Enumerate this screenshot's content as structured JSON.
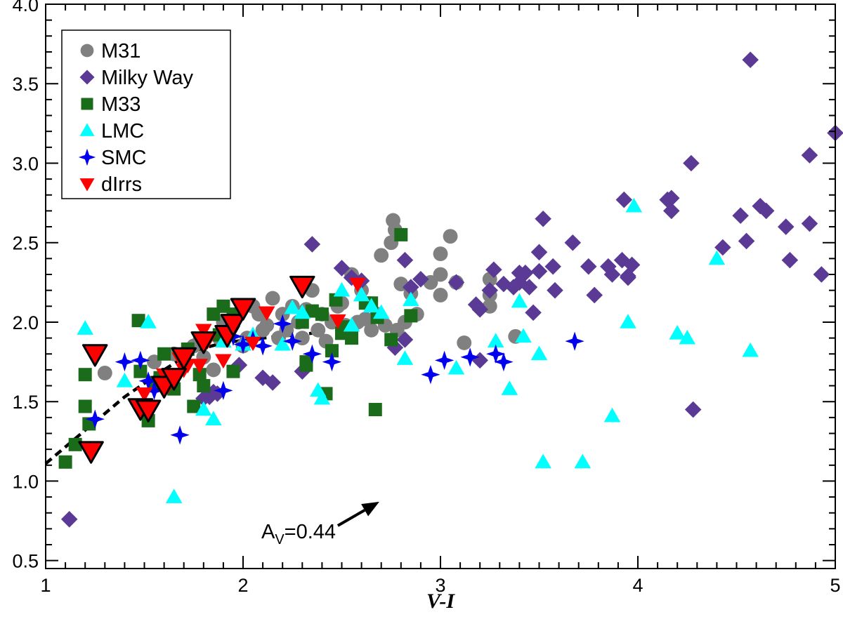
{
  "chart_data": {
    "type": "scatter",
    "title": "",
    "xlabel": "V-I",
    "ylabel": "",
    "xlim": [
      1,
      5
    ],
    "ylim": [
      0.45,
      4.0
    ],
    "xticks": [
      "1",
      "2",
      "3",
      "4",
      "5"
    ],
    "xtick_values": [
      1,
      2,
      3,
      4,
      5
    ],
    "yticks": [
      "0.5",
      "1.0",
      "1.5",
      "2.0",
      "2.5",
      "3.0",
      "3.5",
      "4.0"
    ],
    "ytick_values": [
      0.5,
      1.0,
      1.5,
      2.0,
      2.5,
      3.0,
      3.5,
      4.0
    ],
    "grid": false,
    "legend_position": "top-left",
    "series": [
      {
        "name": "M31",
        "marker": "circle",
        "color": "#808080",
        "points": [
          [
            1.3,
            1.68
          ],
          [
            1.55,
            1.75
          ],
          [
            1.65,
            1.8
          ],
          [
            1.7,
            1.78
          ],
          [
            1.75,
            1.85
          ],
          [
            1.78,
            1.88
          ],
          [
            1.8,
            1.78
          ],
          [
            1.85,
            1.7
          ],
          [
            1.88,
            1.9
          ],
          [
            1.9,
            2.0
          ],
          [
            1.92,
            1.95
          ],
          [
            1.95,
            2.0
          ],
          [
            1.97,
            2.05
          ],
          [
            2.0,
            1.85
          ],
          [
            2.02,
            1.9
          ],
          [
            2.05,
            2.1
          ],
          [
            2.08,
            2.05
          ],
          [
            2.1,
            1.95
          ],
          [
            2.12,
            1.98
          ],
          [
            2.15,
            2.15
          ],
          [
            2.18,
            1.9
          ],
          [
            2.2,
            2.05
          ],
          [
            2.22,
            1.95
          ],
          [
            2.25,
            2.1
          ],
          [
            2.28,
            2.0
          ],
          [
            2.3,
            1.9
          ],
          [
            2.32,
            2.08
          ],
          [
            2.35,
            2.2
          ],
          [
            2.38,
            1.95
          ],
          [
            2.4,
            2.05
          ],
          [
            2.42,
            1.88
          ],
          [
            2.45,
            2.0
          ],
          [
            2.48,
            2.1
          ],
          [
            2.5,
            2.12
          ],
          [
            2.52,
            1.98
          ],
          [
            2.55,
            2.3
          ],
          [
            2.58,
            2.0
          ],
          [
            2.6,
            2.2
          ],
          [
            2.62,
            2.02
          ],
          [
            2.65,
            1.95
          ],
          [
            2.68,
            2.05
          ],
          [
            2.7,
            2.42
          ],
          [
            2.72,
            1.98
          ],
          [
            2.75,
            2.5
          ],
          [
            2.76,
            2.64
          ],
          [
            2.77,
            2.58
          ],
          [
            2.78,
            1.95
          ],
          [
            2.8,
            2.24
          ],
          [
            2.82,
            2.0
          ],
          [
            2.85,
            2.18
          ],
          [
            2.88,
            2.05
          ],
          [
            2.95,
            2.25
          ],
          [
            3.0,
            2.43
          ],
          [
            3.0,
            2.3
          ],
          [
            3.0,
            2.17
          ],
          [
            3.05,
            2.54
          ],
          [
            3.08,
            2.25
          ],
          [
            3.12,
            1.87
          ],
          [
            3.25,
            2.27
          ],
          [
            3.25,
            2.17
          ],
          [
            3.25,
            2.1
          ],
          [
            3.38,
            1.91
          ]
        ]
      },
      {
        "name": "Milky Way",
        "marker": "diamond",
        "color": "#5b3a96",
        "points": [
          [
            1.12,
            0.76
          ],
          [
            1.8,
            1.52
          ],
          [
            1.83,
            1.53
          ],
          [
            1.85,
            1.56
          ],
          [
            1.87,
            1.55
          ],
          [
            1.98,
            1.73
          ],
          [
            2.1,
            1.65
          ],
          [
            2.15,
            1.62
          ],
          [
            2.3,
            1.69
          ],
          [
            2.35,
            2.49
          ],
          [
            2.5,
            2.34
          ],
          [
            2.55,
            2.28
          ],
          [
            2.6,
            2.26
          ],
          [
            2.77,
            1.84
          ],
          [
            2.82,
            2.39
          ],
          [
            2.82,
            1.89
          ],
          [
            2.85,
            2.22
          ],
          [
            2.9,
            2.27
          ],
          [
            3.08,
            2.25
          ],
          [
            3.18,
            2.11
          ],
          [
            3.2,
            2.08
          ],
          [
            3.2,
            1.76
          ],
          [
            3.25,
            2.2
          ],
          [
            3.27,
            2.33
          ],
          [
            3.32,
            2.24
          ],
          [
            3.37,
            2.22
          ],
          [
            3.4,
            2.25
          ],
          [
            3.4,
            2.31
          ],
          [
            3.43,
            2.31
          ],
          [
            3.45,
            2.22
          ],
          [
            3.47,
            2.06
          ],
          [
            3.5,
            2.32
          ],
          [
            3.5,
            2.44
          ],
          [
            3.52,
            2.65
          ],
          [
            3.57,
            2.35
          ],
          [
            3.58,
            2.2
          ],
          [
            3.67,
            2.5
          ],
          [
            3.75,
            2.35
          ],
          [
            3.78,
            2.17
          ],
          [
            3.85,
            2.35
          ],
          [
            3.87,
            2.3
          ],
          [
            3.92,
            2.39
          ],
          [
            3.93,
            2.77
          ],
          [
            3.95,
            2.28
          ],
          [
            3.95,
            2.29
          ],
          [
            3.97,
            2.36
          ],
          [
            4.15,
            2.77
          ],
          [
            4.17,
            2.78
          ],
          [
            4.17,
            2.7
          ],
          [
            4.27,
            3.0
          ],
          [
            4.28,
            1.45
          ],
          [
            4.43,
            2.47
          ],
          [
            4.52,
            2.67
          ],
          [
            4.55,
            2.51
          ],
          [
            4.57,
            3.65
          ],
          [
            4.62,
            2.73
          ],
          [
            4.65,
            2.7
          ],
          [
            4.75,
            2.6
          ],
          [
            4.77,
            2.39
          ],
          [
            4.87,
            3.05
          ],
          [
            4.87,
            2.62
          ],
          [
            4.93,
            2.3
          ],
          [
            5.0,
            3.19
          ]
        ]
      },
      {
        "name": "M33",
        "marker": "square",
        "color": "#1a6b1a",
        "points": [
          [
            1.1,
            1.12
          ],
          [
            1.15,
            1.23
          ],
          [
            1.2,
            1.67
          ],
          [
            1.2,
            1.47
          ],
          [
            1.22,
            1.36
          ],
          [
            1.47,
            2.01
          ],
          [
            1.48,
            1.69
          ],
          [
            1.5,
            1.47
          ],
          [
            1.52,
            1.38
          ],
          [
            1.55,
            1.62
          ],
          [
            1.58,
            1.65
          ],
          [
            1.6,
            1.8
          ],
          [
            1.65,
            1.58
          ],
          [
            1.72,
            1.83
          ],
          [
            1.75,
            1.47
          ],
          [
            1.78,
            1.67
          ],
          [
            1.8,
            1.6
          ],
          [
            1.85,
            2.05
          ],
          [
            1.88,
            1.92
          ],
          [
            1.9,
            2.1
          ],
          [
            1.92,
            1.93
          ],
          [
            1.95,
            2.05
          ],
          [
            1.95,
            1.69
          ],
          [
            2.3,
            2.0
          ],
          [
            2.32,
            1.75
          ],
          [
            2.32,
            1.73
          ],
          [
            2.35,
            2.07
          ],
          [
            2.4,
            2.05
          ],
          [
            2.42,
            1.55
          ],
          [
            2.45,
            1.82
          ],
          [
            2.47,
            2.14
          ],
          [
            2.5,
            1.93
          ],
          [
            2.52,
            1.97
          ],
          [
            2.55,
            1.9
          ],
          [
            2.62,
            2.12
          ],
          [
            2.65,
            2.12
          ],
          [
            2.68,
            2.03
          ],
          [
            2.67,
            1.45
          ],
          [
            2.75,
            1.89
          ],
          [
            2.8,
            2.55
          ],
          [
            2.85,
            2.04
          ]
        ]
      },
      {
        "name": "LMC",
        "marker": "triangle-up",
        "color": "#00ffff",
        "points": [
          [
            1.2,
            1.96
          ],
          [
            1.4,
            1.63
          ],
          [
            1.52,
            2.0
          ],
          [
            1.65,
            0.9
          ],
          [
            1.8,
            1.45
          ],
          [
            1.85,
            1.39
          ],
          [
            1.9,
            1.88
          ],
          [
            2.0,
            1.86
          ],
          [
            2.05,
            1.92
          ],
          [
            2.2,
            1.86
          ],
          [
            2.25,
            2.09
          ],
          [
            2.3,
            2.06
          ],
          [
            2.38,
            1.57
          ],
          [
            2.4,
            1.52
          ],
          [
            2.5,
            2.2
          ],
          [
            2.55,
            1.98
          ],
          [
            2.6,
            2.17
          ],
          [
            2.65,
            2.1
          ],
          [
            2.7,
            2.06
          ],
          [
            2.82,
            1.77
          ],
          [
            2.85,
            2.14
          ],
          [
            3.08,
            1.71
          ],
          [
            3.28,
            1.88
          ],
          [
            3.35,
            1.58
          ],
          [
            3.4,
            2.13
          ],
          [
            3.42,
            1.91
          ],
          [
            3.5,
            1.8
          ],
          [
            3.52,
            1.12
          ],
          [
            3.72,
            1.12
          ],
          [
            3.87,
            1.41
          ],
          [
            3.95,
            2.0
          ],
          [
            3.98,
            2.73
          ],
          [
            4.2,
            1.93
          ],
          [
            4.25,
            1.9
          ],
          [
            4.4,
            2.4
          ],
          [
            4.57,
            1.82
          ]
        ]
      },
      {
        "name": "SMC",
        "marker": "star4",
        "color": "#0000ee",
        "points": [
          [
            1.25,
            1.39
          ],
          [
            1.4,
            1.75
          ],
          [
            1.48,
            1.76
          ],
          [
            1.52,
            1.63
          ],
          [
            1.55,
            1.57
          ],
          [
            1.68,
            1.29
          ],
          [
            1.9,
            1.57
          ],
          [
            1.92,
            1.96
          ],
          [
            1.95,
            1.91
          ],
          [
            2.0,
            1.86
          ],
          [
            2.05,
            1.89
          ],
          [
            2.1,
            1.85
          ],
          [
            2.2,
            1.99
          ],
          [
            2.25,
            1.88
          ],
          [
            2.35,
            1.8
          ],
          [
            2.45,
            1.75
          ],
          [
            2.95,
            1.67
          ],
          [
            3.02,
            1.76
          ],
          [
            3.15,
            1.78
          ],
          [
            3.28,
            1.8
          ],
          [
            3.32,
            1.75
          ],
          [
            3.68,
            1.88
          ]
        ]
      },
      {
        "name": "dIrrs",
        "marker": "triangle-down",
        "color": "#ff0000",
        "points": [
          [
            1.25,
            1.8
          ],
          [
            1.23,
            1.19
          ],
          [
            1.5,
            1.55
          ],
          [
            1.48,
            1.46
          ],
          [
            1.52,
            1.45
          ],
          [
            1.6,
            1.67
          ],
          [
            1.62,
            1.6
          ],
          [
            1.65,
            1.65
          ],
          [
            1.68,
            1.77
          ],
          [
            1.7,
            1.7
          ],
          [
            1.72,
            1.73
          ],
          [
            1.78,
            1.73
          ],
          [
            1.8,
            1.95
          ],
          [
            1.82,
            1.88
          ],
          [
            1.9,
            1.76
          ],
          [
            1.92,
            1.92
          ],
          [
            1.95,
            1.99
          ],
          [
            2.0,
            2.09
          ],
          [
            2.05,
            1.87
          ],
          [
            2.12,
            2.06
          ],
          [
            2.3,
            2.23
          ],
          [
            2.48,
            2.01
          ],
          [
            2.58,
            2.24
          ]
        ],
        "highlighted": [
          [
            1.25,
            1.8
          ],
          [
            1.23,
            1.19
          ],
          [
            1.48,
            1.46
          ],
          [
            1.52,
            1.45
          ],
          [
            1.6,
            1.6
          ],
          [
            1.65,
            1.65
          ],
          [
            1.7,
            1.78
          ],
          [
            1.8,
            1.88
          ],
          [
            1.92,
            1.92
          ],
          [
            1.95,
            1.99
          ],
          [
            2.0,
            2.09
          ],
          [
            2.3,
            2.23
          ]
        ]
      }
    ],
    "fit_line": {
      "style": "dashed",
      "color": "#000000",
      "points": [
        [
          1.0,
          1.11
        ],
        [
          1.2,
          1.32
        ],
        [
          1.4,
          1.53
        ],
        [
          1.6,
          1.7
        ],
        [
          1.75,
          1.82
        ],
        [
          1.9,
          1.87
        ],
        [
          2.1,
          1.9
        ],
        [
          2.35,
          1.93
        ]
      ]
    },
    "annotation": {
      "text_prefix": "A",
      "text_sub": "V",
      "text_suffix": "=0.44",
      "text_x": 2.47,
      "text_y": 0.64,
      "arrow_from": [
        2.48,
        0.72
      ],
      "arrow_to": [
        2.69,
        0.87
      ]
    }
  }
}
